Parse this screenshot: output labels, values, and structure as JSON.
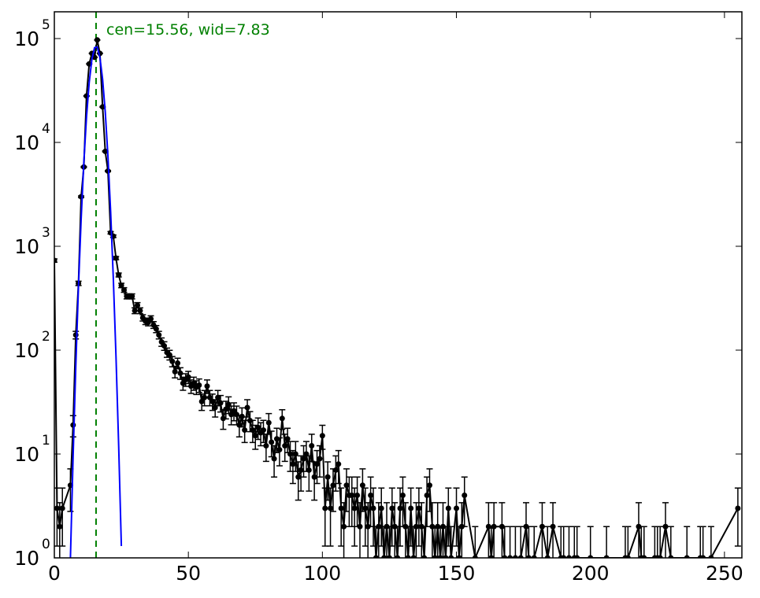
{
  "chart_data": {
    "type": "scatter",
    "log_y": true,
    "xlim": [
      0,
      256.5
    ],
    "ylim": [
      1,
      181000
    ],
    "xticks": [
      0,
      50,
      100,
      150,
      200,
      250
    ],
    "yticks": [
      {
        "value": 1,
        "label": "10",
        "power": "0"
      },
      {
        "value": 10,
        "label": "10",
        "power": "1"
      },
      {
        "value": 100,
        "label": "10",
        "power": "2"
      },
      {
        "value": 1000,
        "label": "10",
        "power": "3"
      },
      {
        "value": 10000,
        "label": "10",
        "power": "4"
      },
      {
        "value": 100000,
        "label": "10",
        "power": "5"
      }
    ],
    "annotation": "cen=15.56, wid=7.83",
    "vline": {
      "x": 15.56,
      "color": "#008000"
    },
    "series": [
      {
        "type": "errorbar",
        "color": "#000000",
        "x": [
          0,
          1,
          2,
          3,
          6,
          7,
          8,
          9,
          10,
          11,
          12,
          13,
          14,
          15,
          16,
          17,
          18,
          19,
          20,
          21,
          22,
          23,
          24,
          25,
          26,
          27,
          28,
          29,
          30,
          31,
          32,
          33,
          34,
          35,
          36,
          37,
          38,
          39,
          40,
          41,
          42,
          43,
          44,
          45,
          46,
          47,
          48,
          49,
          50,
          51,
          52,
          53,
          54,
          55,
          56,
          57,
          58,
          59,
          60,
          61,
          62,
          63,
          64,
          65,
          66,
          67,
          68,
          69,
          70,
          71,
          72,
          73,
          74,
          75,
          76,
          77,
          78,
          79,
          80,
          81,
          82,
          83,
          84,
          85,
          86,
          87,
          88,
          89,
          90,
          91,
          92,
          93,
          94,
          95,
          96,
          97,
          98,
          99,
          100,
          101,
          102,
          103,
          104,
          105,
          106,
          107,
          108,
          109,
          110,
          111,
          112,
          113,
          114,
          115,
          116,
          117,
          118,
          119,
          120,
          121,
          122,
          123,
          124,
          125,
          126,
          127,
          128,
          129,
          130,
          131,
          132,
          133,
          134,
          135,
          136,
          137,
          138,
          139,
          140,
          141,
          142,
          143,
          144,
          145,
          146,
          147,
          148,
          150,
          151,
          152,
          153,
          157,
          162,
          163,
          164,
          167,
          168,
          170,
          172,
          174,
          176,
          177,
          179,
          182,
          184,
          186,
          189,
          190,
          192,
          194,
          195,
          200,
          206,
          213,
          214,
          218,
          219,
          220,
          224,
          225,
          226,
          228,
          230,
          236,
          241,
          242,
          245,
          255
        ],
        "values": [
          730,
          3,
          2,
          3,
          5,
          19,
          140,
          440,
          3000,
          5800,
          28000,
          57000,
          72000,
          66000,
          97000,
          72000,
          22000,
          8200,
          5300,
          1350,
          1250,
          770,
          530,
          420,
          380,
          330,
          330,
          330,
          240,
          270,
          240,
          205,
          190,
          185,
          200,
          175,
          160,
          140,
          120,
          110,
          95,
          90,
          78,
          62,
          75,
          60,
          48,
          52,
          55,
          45,
          48,
          44,
          46,
          32,
          35,
          45,
          35,
          32,
          28,
          35,
          31,
          22,
          27,
          30,
          24,
          26,
          24,
          19,
          23,
          17,
          28,
          21,
          17,
          15,
          18,
          16,
          17,
          12,
          20,
          13,
          9,
          14,
          11,
          22,
          12,
          14,
          10,
          8,
          10,
          6,
          7,
          9,
          10,
          7,
          12,
          6,
          8,
          9,
          15,
          3,
          6,
          3,
          5,
          7,
          8,
          3,
          2,
          5,
          4,
          4,
          3,
          4,
          2,
          5,
          3,
          2,
          4,
          3,
          1,
          2,
          3,
          1,
          2,
          1,
          3,
          2,
          1,
          3,
          4,
          2,
          1,
          3,
          1,
          2,
          3,
          2,
          1,
          4,
          5,
          2,
          1,
          2,
          1,
          2,
          1,
          3,
          1,
          3,
          1,
          2,
          4,
          1,
          2,
          1,
          2,
          2,
          1,
          1,
          1,
          1,
          2,
          1,
          1,
          2,
          1,
          2,
          1,
          1,
          1,
          1,
          1,
          1,
          1,
          1,
          1,
          2,
          1,
          1,
          1,
          1,
          1,
          2,
          1,
          1,
          1,
          1,
          1,
          3
        ],
        "yerr": [
          27,
          1.7,
          1.4,
          1.7,
          2.2,
          4.4,
          11.8,
          21,
          55,
          76,
          167,
          239,
          268,
          257,
          311,
          268,
          148,
          90.6,
          72.8,
          36.7,
          35.4,
          27.7,
          23,
          20.5,
          19.5,
          18.2,
          18.2,
          18.2,
          15.5,
          16.4,
          15.5,
          14.3,
          13.8,
          13.6,
          14.1,
          13.2,
          12.6,
          11.8,
          11,
          10.5,
          9.7,
          9.5,
          8.8,
          7.9,
          8.7,
          7.7,
          6.9,
          7.2,
          7.4,
          6.7,
          6.9,
          6.6,
          6.8,
          5.7,
          5.9,
          6.7,
          5.9,
          5.7,
          5.3,
          5.9,
          5.6,
          4.7,
          5.2,
          5.5,
          4.9,
          5.1,
          4.9,
          4.4,
          4.8,
          4.1,
          5.3,
          4.6,
          4.1,
          3.9,
          4.2,
          4,
          4.1,
          3.5,
          4.5,
          3.6,
          3,
          3.7,
          3.3,
          4.7,
          3.5,
          3.7,
          3.2,
          2.8,
          3.2,
          2.4,
          2.6,
          3,
          3.2,
          2.6,
          3.5,
          2.4,
          2.8,
          3,
          3.9,
          1.7,
          2.4,
          1.7,
          2.2,
          2.6,
          2.8,
          1.7,
          1.4,
          2.2,
          2,
          2,
          1.7,
          2,
          1.4,
          2.2,
          1.7,
          1.4,
          2,
          1.7,
          1,
          1.4,
          1.7,
          1,
          1.4,
          1,
          1.7,
          1.4,
          1,
          1.7,
          2,
          1.4,
          1,
          1.7,
          1,
          1.4,
          1.7,
          1.4,
          1,
          2,
          2.2,
          1.4,
          1,
          1.4,
          1,
          1.4,
          1,
          1.7,
          1,
          1.7,
          1,
          1.4,
          2,
          1,
          1.4,
          1,
          1.4,
          1.4,
          1,
          1,
          1,
          1,
          1.4,
          1,
          1,
          1.4,
          1,
          1.4,
          1,
          1,
          1,
          1,
          1,
          1,
          1,
          1,
          1,
          1.4,
          1,
          1,
          1,
          1,
          1,
          1.4,
          1,
          1,
          1,
          1,
          1,
          1.7
        ]
      },
      {
        "type": "line",
        "color": "#0000ff",
        "x": [
          6,
          7,
          8,
          9,
          10,
          11,
          12,
          13,
          14,
          15,
          16,
          17,
          18,
          19,
          20,
          21,
          22,
          23,
          24,
          25
        ],
        "values": [
          1.0,
          9.5,
          70,
          408,
          1830,
          6430,
          17600,
          37700,
          62800,
          81800,
          83000,
          65700,
          40600,
          19500,
          7330,
          2150,
          492,
          87,
          12,
          1.3
        ]
      }
    ]
  }
}
